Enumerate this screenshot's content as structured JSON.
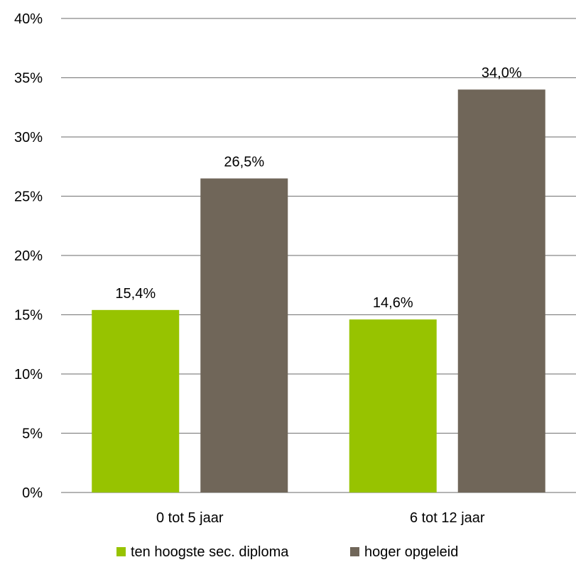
{
  "chart_data": {
    "type": "bar",
    "categories": [
      "0 tot 5 jaar",
      "6 tot 12 jaar"
    ],
    "series": [
      {
        "name": "ten hoogste sec. diploma",
        "values": [
          15.4,
          14.6
        ],
        "labels": [
          "15,4%",
          "14,6%"
        ],
        "color": "#97c300"
      },
      {
        "name": "hoger opgeleid",
        "values": [
          26.5,
          34.0
        ],
        "labels": [
          "26,5%",
          "34,0%"
        ],
        "color": "#706659"
      }
    ],
    "ylim": [
      0,
      40
    ],
    "yticks": [
      0,
      5,
      10,
      15,
      20,
      25,
      30,
      35,
      40
    ],
    "ytick_labels": [
      "0%",
      "5%",
      "10%",
      "15%",
      "20%",
      "25%",
      "30%",
      "35%",
      "40%"
    ],
    "grid": true,
    "grid_color": "#868686",
    "legend_position": "bottom"
  }
}
